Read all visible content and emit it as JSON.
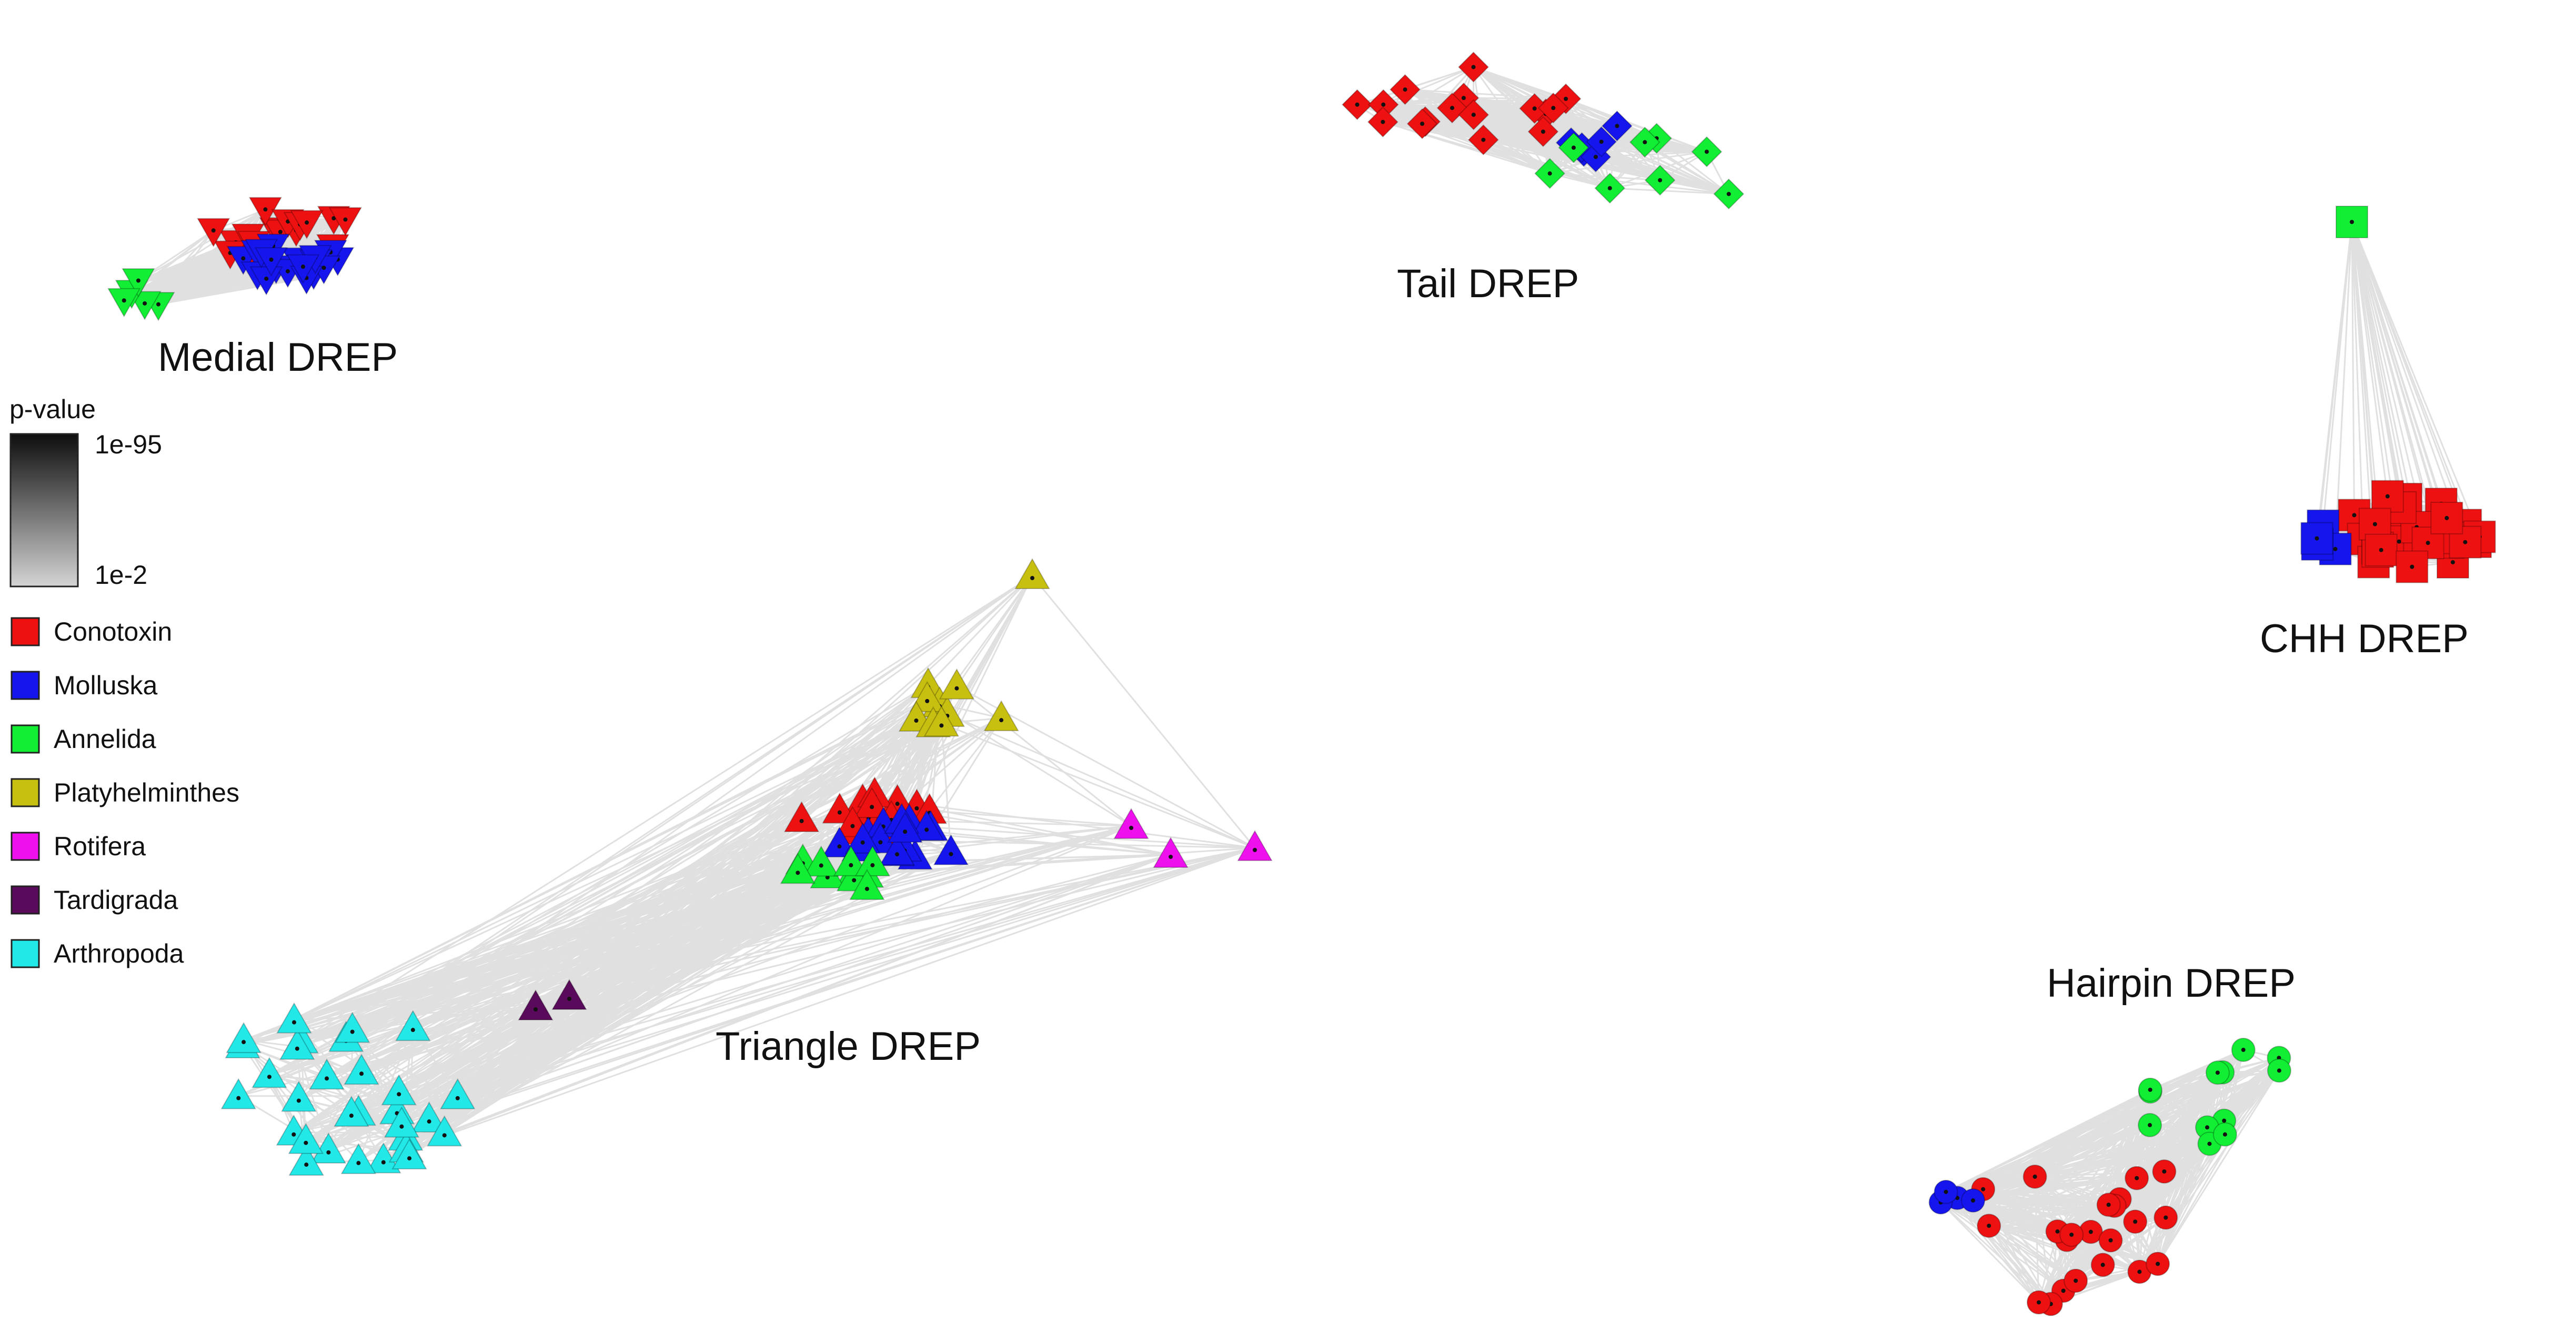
{
  "legend": {
    "scale_title": "p-value",
    "scale_top": "1e-95",
    "scale_bottom": "1e-2",
    "gradient_dark": "#0d0d0d",
    "gradient_light": "#d4d4d4",
    "taxa": [
      {
        "name": "Conotoxin",
        "color": "#ee1111"
      },
      {
        "name": "Molluska",
        "color": "#1515ee"
      },
      {
        "name": "Annelida",
        "color": "#11ee33"
      },
      {
        "name": "Platyhelminthes",
        "color": "#c8c010"
      },
      {
        "name": "Rotifera",
        "color": "#ee11ee"
      },
      {
        "name": "Tardigrada",
        "color": "#5a0a5a"
      },
      {
        "name": "Arthropoda",
        "color": "#22e8e8"
      }
    ]
  },
  "edge_color": "#e0e0e0",
  "clusters": [
    {
      "label": "Medial DREP",
      "shape": "triangle-down",
      "groups": [
        "Conotoxin",
        "Molluska",
        "Annelida"
      ]
    },
    {
      "label": "Tail DREP",
      "shape": "diamond",
      "groups": [
        "Conotoxin",
        "Molluska",
        "Annelida"
      ]
    },
    {
      "label": "CHH DREP",
      "shape": "square",
      "groups": [
        "Annelida",
        "Conotoxin",
        "Molluska"
      ]
    },
    {
      "label": "Triangle DREP",
      "shape": "triangle-up",
      "groups": [
        "Platyhelminthes",
        "Conotoxin",
        "Molluska",
        "Annelida",
        "Rotifera",
        "Tardigrada",
        "Arthropoda"
      ]
    },
    {
      "label": "Hairpin DREP",
      "shape": "circle",
      "groups": [
        "Annelida",
        "Conotoxin",
        "Molluska"
      ]
    }
  ]
}
